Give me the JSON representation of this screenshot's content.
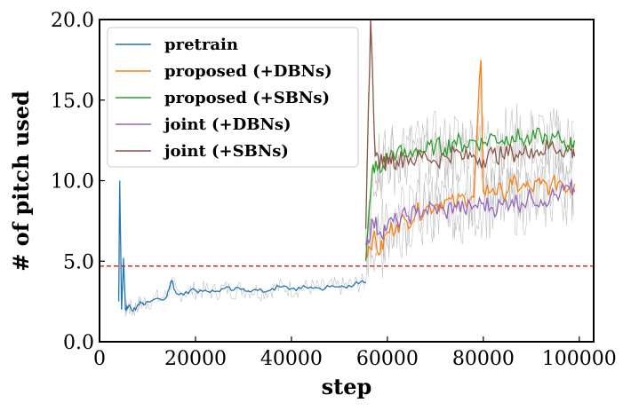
{
  "chart_data": {
    "type": "line",
    "title": "",
    "xlabel": "step",
    "ylabel": "# of pitch used",
    "xlim": [
      0,
      103000
    ],
    "ylim": [
      0,
      20
    ],
    "xticks": [
      0,
      20000,
      40000,
      60000,
      80000,
      100000
    ],
    "xtick_labels": [
      "0",
      "20000",
      "40000",
      "60000",
      "80000",
      "100000"
    ],
    "yticks": [
      0,
      5,
      10,
      15,
      20
    ],
    "ytick_labels": [
      "0.0",
      "5.0",
      "10.0",
      "15.0",
      "20.0"
    ],
    "grid": false,
    "legend_position": "top-left",
    "reference_line": {
      "y": 4.7,
      "style": "dashed",
      "color": "#d62728"
    },
    "series": [
      {
        "name": "pretrain",
        "color": "#1f77b4",
        "x": [
          4000,
          4200,
          4600,
          5000,
          5400,
          6000,
          7000,
          8000,
          9000,
          10000,
          12000,
          14000,
          15000,
          16000,
          18000,
          20000,
          22000,
          24000,
          26000,
          28000,
          30000,
          32000,
          34000,
          36000,
          38000,
          40000,
          42000,
          44000,
          46000,
          48000,
          50000,
          52000,
          54000,
          55500
        ],
        "y": [
          2.5,
          10.0,
          2.0,
          5.2,
          2.0,
          2.2,
          1.9,
          2.3,
          2.4,
          2.5,
          2.7,
          2.8,
          3.8,
          3.0,
          3.1,
          3.2,
          3.2,
          3.1,
          3.3,
          3.2,
          3.3,
          3.2,
          3.1,
          3.3,
          3.4,
          3.3,
          3.3,
          3.4,
          3.3,
          3.4,
          3.4,
          3.5,
          3.6,
          3.7
        ]
      },
      {
        "name": "proposed (+DBNs)",
        "color": "#ff7f0e",
        "x": [
          55500,
          57000,
          58500,
          60000,
          62000,
          64000,
          66000,
          68000,
          70000,
          72000,
          74000,
          76000,
          78000,
          79500,
          80000,
          82000,
          84000,
          86000,
          88000,
          90000,
          92000,
          94000,
          96000,
          98000,
          99000
        ],
        "y": [
          5.5,
          6.5,
          5.5,
          6.8,
          7.3,
          7.5,
          8.0,
          8.3,
          8.5,
          8.8,
          8.5,
          9.0,
          9.0,
          17.5,
          9.3,
          9.5,
          9.2,
          9.8,
          9.6,
          9.5,
          9.8,
          9.6,
          10.0,
          9.5,
          9.8
        ]
      },
      {
        "name": "proposed (+SBNs)",
        "color": "#2ca02c",
        "x": [
          55500,
          57000,
          58500,
          60000,
          62000,
          64000,
          66000,
          68000,
          70000,
          72000,
          74000,
          76000,
          78000,
          80000,
          82000,
          84000,
          86000,
          88000,
          90000,
          92000,
          94000,
          96000,
          98000,
          99000
        ],
        "y": [
          5.0,
          11.0,
          10.5,
          11.5,
          11.8,
          11.5,
          12.0,
          11.8,
          12.2,
          12.0,
          12.5,
          12.2,
          12.5,
          12.3,
          12.8,
          12.5,
          12.8,
          12.6,
          12.5,
          12.8,
          12.4,
          12.6,
          12.2,
          12.5
        ]
      },
      {
        "name": "joint (+DBNs)",
        "color": "#9467bd",
        "x": [
          55500,
          57000,
          58500,
          60000,
          62000,
          64000,
          66000,
          68000,
          70000,
          72000,
          74000,
          76000,
          78000,
          80000,
          82000,
          84000,
          86000,
          88000,
          90000,
          92000,
          94000,
          96000,
          98000,
          99000
        ],
        "y": [
          6.0,
          7.5,
          6.8,
          7.2,
          7.5,
          7.8,
          8.0,
          8.2,
          8.3,
          8.0,
          8.5,
          8.2,
          8.4,
          8.6,
          8.3,
          8.5,
          8.8,
          8.6,
          9.0,
          8.8,
          9.0,
          9.2,
          9.5,
          9.3
        ]
      },
      {
        "name": "joint (+SBNs)",
        "color": "#8c564b",
        "x": [
          55500,
          56500,
          57500,
          59000,
          60500,
          62000,
          64000,
          66000,
          68000,
          70000,
          72000,
          74000,
          76000,
          78000,
          80000,
          82000,
          84000,
          86000,
          88000,
          90000,
          92000,
          94000,
          96000,
          98000,
          99000
        ],
        "y": [
          7.0,
          20.0,
          11.5,
          11.0,
          11.5,
          11.2,
          11.5,
          11.3,
          11.6,
          11.2,
          11.5,
          11.8,
          11.4,
          11.6,
          11.3,
          11.7,
          11.5,
          11.8,
          11.6,
          12.0,
          11.8,
          12.2,
          11.9,
          12.0,
          11.5
        ]
      }
    ]
  }
}
